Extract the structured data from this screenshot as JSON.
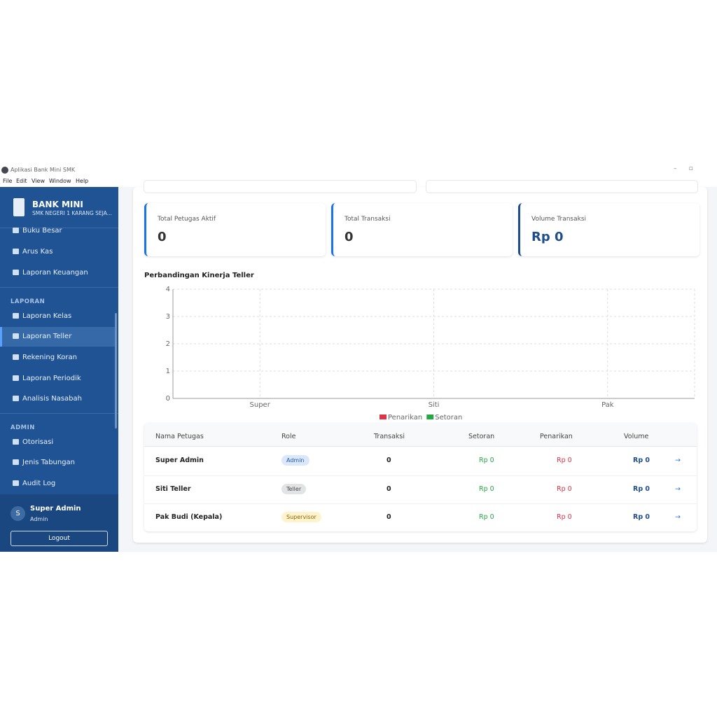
{
  "window": {
    "title": "Aplikasi Bank Mini SMK",
    "menu": [
      "File",
      "Edit",
      "View",
      "Window",
      "Help"
    ]
  },
  "sidebar": {
    "brand": "BANK MINI",
    "school": "SMK NEGERI 1 KARANG SEJA...",
    "sections": [
      {
        "items": [
          "Buku Besar",
          "Arus Kas",
          "Laporan Keuangan"
        ]
      },
      {
        "title": "LAPORAN",
        "items": [
          "Laporan Kelas",
          "Laporan Teller",
          "Rekening Koran",
          "Laporan Periodik",
          "Analisis Nasabah"
        ]
      },
      {
        "title": "ADMIN",
        "items": [
          "Otorisasi",
          "Jenis Tabungan",
          "Audit Log"
        ]
      }
    ]
  },
  "user": {
    "initial": "S",
    "name": "Super Admin",
    "role": "Admin",
    "logout": "Logout"
  },
  "stats": [
    {
      "label": "Total Petugas Aktif",
      "value": "0"
    },
    {
      "label": "Total Transaksi",
      "value": "0"
    },
    {
      "label": "Volume Transaksi",
      "value": "Rp 0"
    }
  ],
  "chart_data": {
    "type": "bar",
    "title": "Perbandingan Kinerja Teller",
    "categories": [
      "Super",
      "Siti",
      "Pak"
    ],
    "series": [
      {
        "name": "Penarikan",
        "color": "#dc3545",
        "values": [
          0,
          0,
          0
        ]
      },
      {
        "name": "Setoran",
        "color": "#28a745",
        "values": [
          0,
          0,
          0
        ]
      }
    ],
    "ylim": [
      0,
      4
    ],
    "yticks": [
      0,
      1,
      2,
      3,
      4
    ],
    "grid": true,
    "legend": "bottom"
  },
  "table": {
    "headers": [
      "Nama Petugas",
      "Role",
      "Transaksi",
      "Setoran",
      "Penarikan",
      "Volume"
    ],
    "rows": [
      [
        "Super Admin",
        "Admin",
        0,
        "Rp 0",
        "Rp 0",
        "Rp 0",
        "→"
      ],
      [
        "Siti Teller",
        "Teller",
        0,
        "Rp 0",
        "Rp 0",
        "Rp 0",
        "→"
      ],
      [
        "Pak Budi (Kepala)",
        "Supervisor",
        0,
        "Rp 0",
        "Rp 0",
        "Rp 0",
        "→"
      ]
    ]
  }
}
